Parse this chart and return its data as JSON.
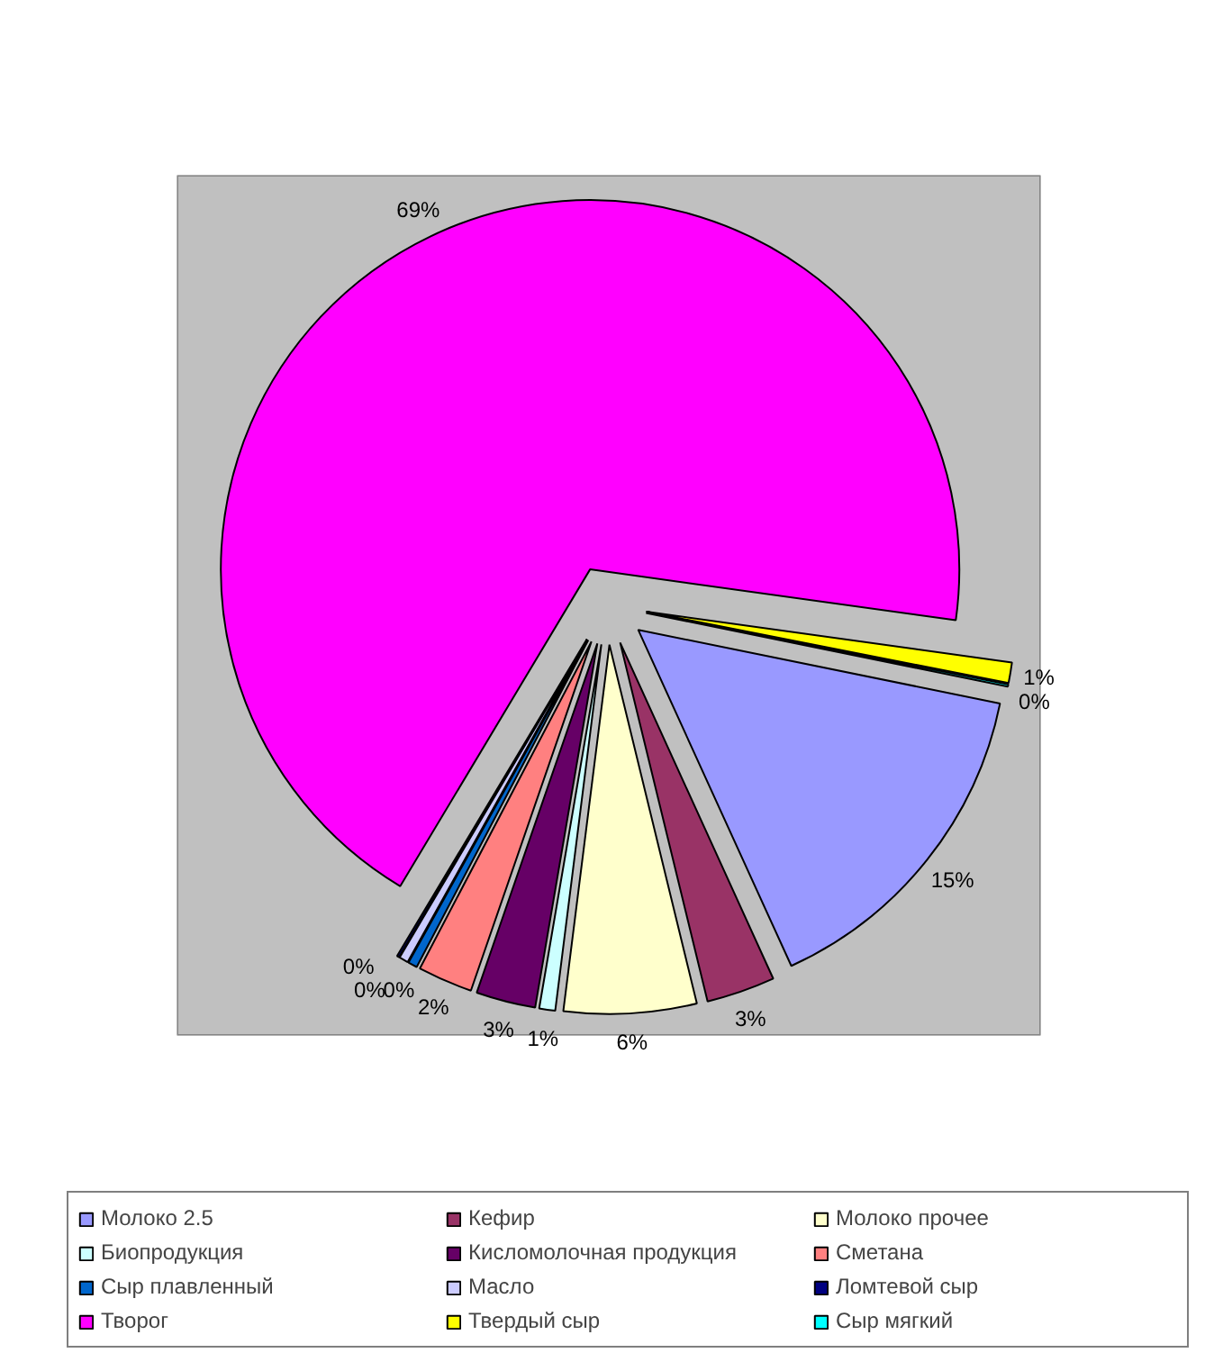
{
  "chart_data": {
    "type": "pie",
    "categories": [
      "Молоко 2.5",
      "Кефир",
      "Молоко прочее",
      "Биопродукция",
      "Кисломолочная продукция",
      "Сметана",
      "Сыр плавленный",
      "Масло",
      "Ломтевой сыр",
      "Творог",
      "Твердый сыр",
      "Сыр мягкий"
    ],
    "values": [
      15.0,
      3.0,
      5.8,
      0.7,
      2.6,
      2.4,
      0.4,
      0.4,
      0.1,
      68.6,
      0.9,
      0.1
    ],
    "colors": [
      "#9999ff",
      "#993366",
      "#ffffcc",
      "#ccffff",
      "#660066",
      "#ff8080",
      "#0066cc",
      "#ccccff",
      "#000080",
      "#ff00ff",
      "#ffff00",
      "#00ffff"
    ],
    "value_labels": [
      "15%",
      "3%",
      "6%",
      "1%",
      "3%",
      "2%",
      "0%",
      "0%",
      "0%",
      "69%",
      "1%",
      "0%"
    ],
    "legend": "bottom"
  }
}
